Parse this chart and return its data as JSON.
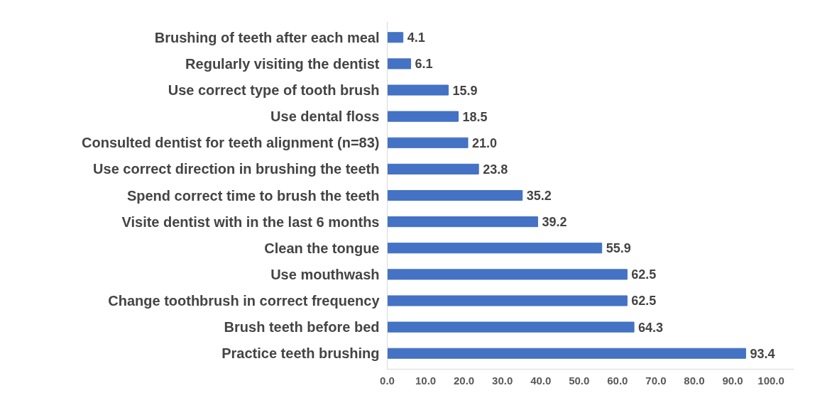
{
  "chart_data": {
    "type": "bar",
    "orientation": "horizontal",
    "categories": [
      "Brushing of teeth after each meal",
      "Regularly visiting the dentist",
      "Use correct type of tooth brush",
      "Use dental floss",
      "Consulted dentist for teeth alignment (n=83)",
      "Use correct direction in brushing the teeth",
      "Spend correct time to brush the teeth",
      "Visite dentist with in the last 6 months",
      "Clean the tongue",
      "Use mouthwash",
      "Change toothbrush in correct frequency",
      "Brush teeth before bed",
      "Practice teeth brushing"
    ],
    "values": [
      4.1,
      6.1,
      15.9,
      18.5,
      21.0,
      23.8,
      35.2,
      39.2,
      55.9,
      62.5,
      62.5,
      64.3,
      93.4
    ],
    "value_labels": [
      "4.1",
      "6.1",
      "15.9",
      "18.5",
      "21.0",
      "23.8",
      "35.2",
      "39.2",
      "55.9",
      "62.5",
      "62.5",
      "64.3",
      "93.4"
    ],
    "color": "#4472c4",
    "xlim": [
      0,
      106
    ],
    "xticks": [
      {
        "value": 0,
        "label": "0.0"
      },
      {
        "value": 10,
        "label": "10.0"
      },
      {
        "value": 20,
        "label": "20.0"
      },
      {
        "value": 30,
        "label": "30.0"
      },
      {
        "value": 40,
        "label": "40.0"
      },
      {
        "value": 50,
        "label": "50.0"
      },
      {
        "value": 60,
        "label": "60.0"
      },
      {
        "value": 70,
        "label": "70.0"
      },
      {
        "value": 80,
        "label": "80.0"
      },
      {
        "value": 90,
        "label": "90.0"
      },
      {
        "value": 100,
        "label": "100.0"
      }
    ],
    "grid": false
  }
}
